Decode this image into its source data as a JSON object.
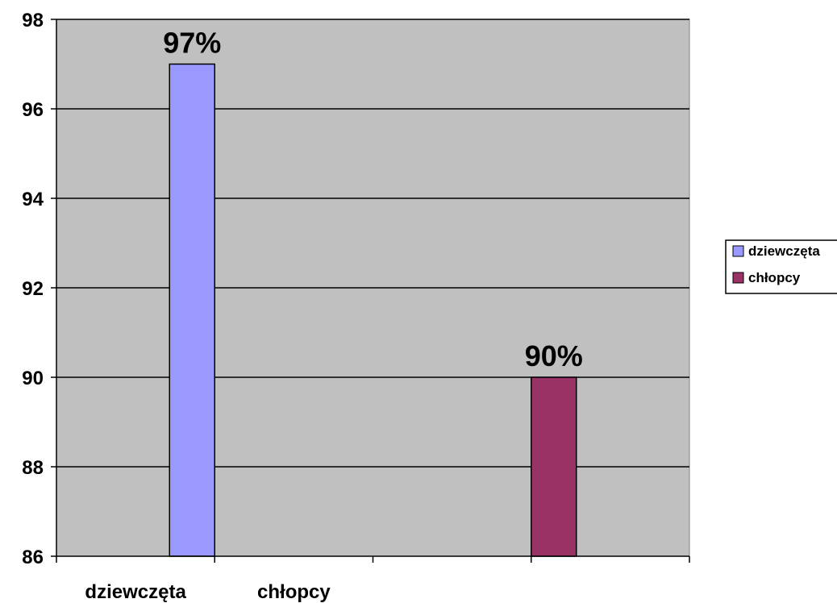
{
  "chart_data": {
    "type": "bar",
    "categories": [
      "dziewczęta",
      "chłopcy"
    ],
    "series": [
      {
        "name": "dziewczęta",
        "values": [
          97,
          null
        ],
        "color": "#9999FF",
        "data_label": "97%"
      },
      {
        "name": "chłopcy",
        "values": [
          null,
          90
        ],
        "color": "#993366",
        "data_label": "90%"
      }
    ],
    "ylim": [
      86,
      98
    ],
    "yticks": [
      86,
      88,
      90,
      92,
      94,
      96,
      98
    ],
    "ytick_labels": [
      "86",
      "88",
      "90",
      "92",
      "94",
      "96",
      "98"
    ],
    "x_tick_labels": [
      "dziewczęta",
      "chłopcy"
    ],
    "plot_background": "#C0C0C0",
    "grid": true,
    "legend_position": "right",
    "title": "",
    "xlabel": "",
    "ylabel": ""
  },
  "legend": {
    "items": [
      {
        "label": "dziewczęta",
        "color": "#9999FF"
      },
      {
        "label": "chłopcy",
        "color": "#993366"
      }
    ]
  }
}
